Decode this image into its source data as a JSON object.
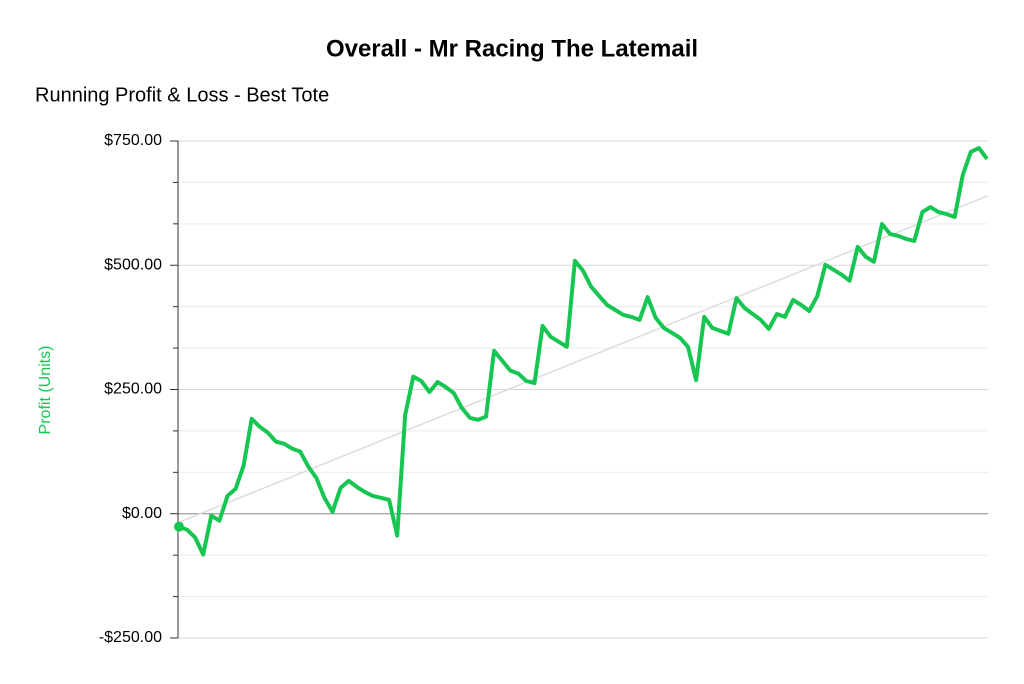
{
  "chart_data": {
    "type": "line",
    "title": "Overall - Mr Racing The Latemail",
    "subtitle": "Running Profit & Loss - Best Tote",
    "y_label": "Profit (Units)",
    "series": [
      {
        "name": "Profit",
        "color": "#17c652",
        "values": [
          -26,
          -32,
          -48,
          -82,
          -4,
          -14,
          36,
          50,
          97,
          191,
          175,
          163,
          145,
          141,
          131,
          125,
          95,
          72,
          32,
          4,
          52,
          66,
          54,
          44,
          36,
          32,
          28,
          -44,
          199,
          276,
          267,
          245,
          265,
          255,
          243,
          213,
          193,
          189,
          195,
          328,
          308,
          288,
          282,
          267,
          263,
          378,
          356,
          346,
          336,
          509,
          489,
          457,
          438,
          420,
          410,
          400,
          396,
          390,
          436,
          394,
          374,
          364,
          354,
          336,
          269,
          396,
          374,
          368,
          362,
          434,
          414,
          402,
          390,
          372,
          402,
          396,
          430,
          420,
          408,
          438,
          501,
          491,
          481,
          469,
          537,
          517,
          507,
          583,
          563,
          559,
          553,
          549,
          607,
          617,
          607,
          603,
          597,
          682,
          728,
          736,
          714
        ]
      }
    ],
    "trend": {
      "color": "#dddddd",
      "values": [
        -18,
        640
      ]
    },
    "ylim": [
      -250,
      750
    ],
    "yticks": [
      {
        "value": -250,
        "label": "-$250.00"
      },
      {
        "value": 0,
        "label": "$0.00"
      },
      {
        "value": 250,
        "label": "$250.00"
      },
      {
        "value": 500,
        "label": "$500.00"
      },
      {
        "value": 750,
        "label": "$750.00"
      }
    ],
    "yminorticks": [
      -166.67,
      -83.33,
      83.33,
      166.67,
      333.33,
      416.67,
      583.33,
      666.67
    ],
    "grid": true
  }
}
